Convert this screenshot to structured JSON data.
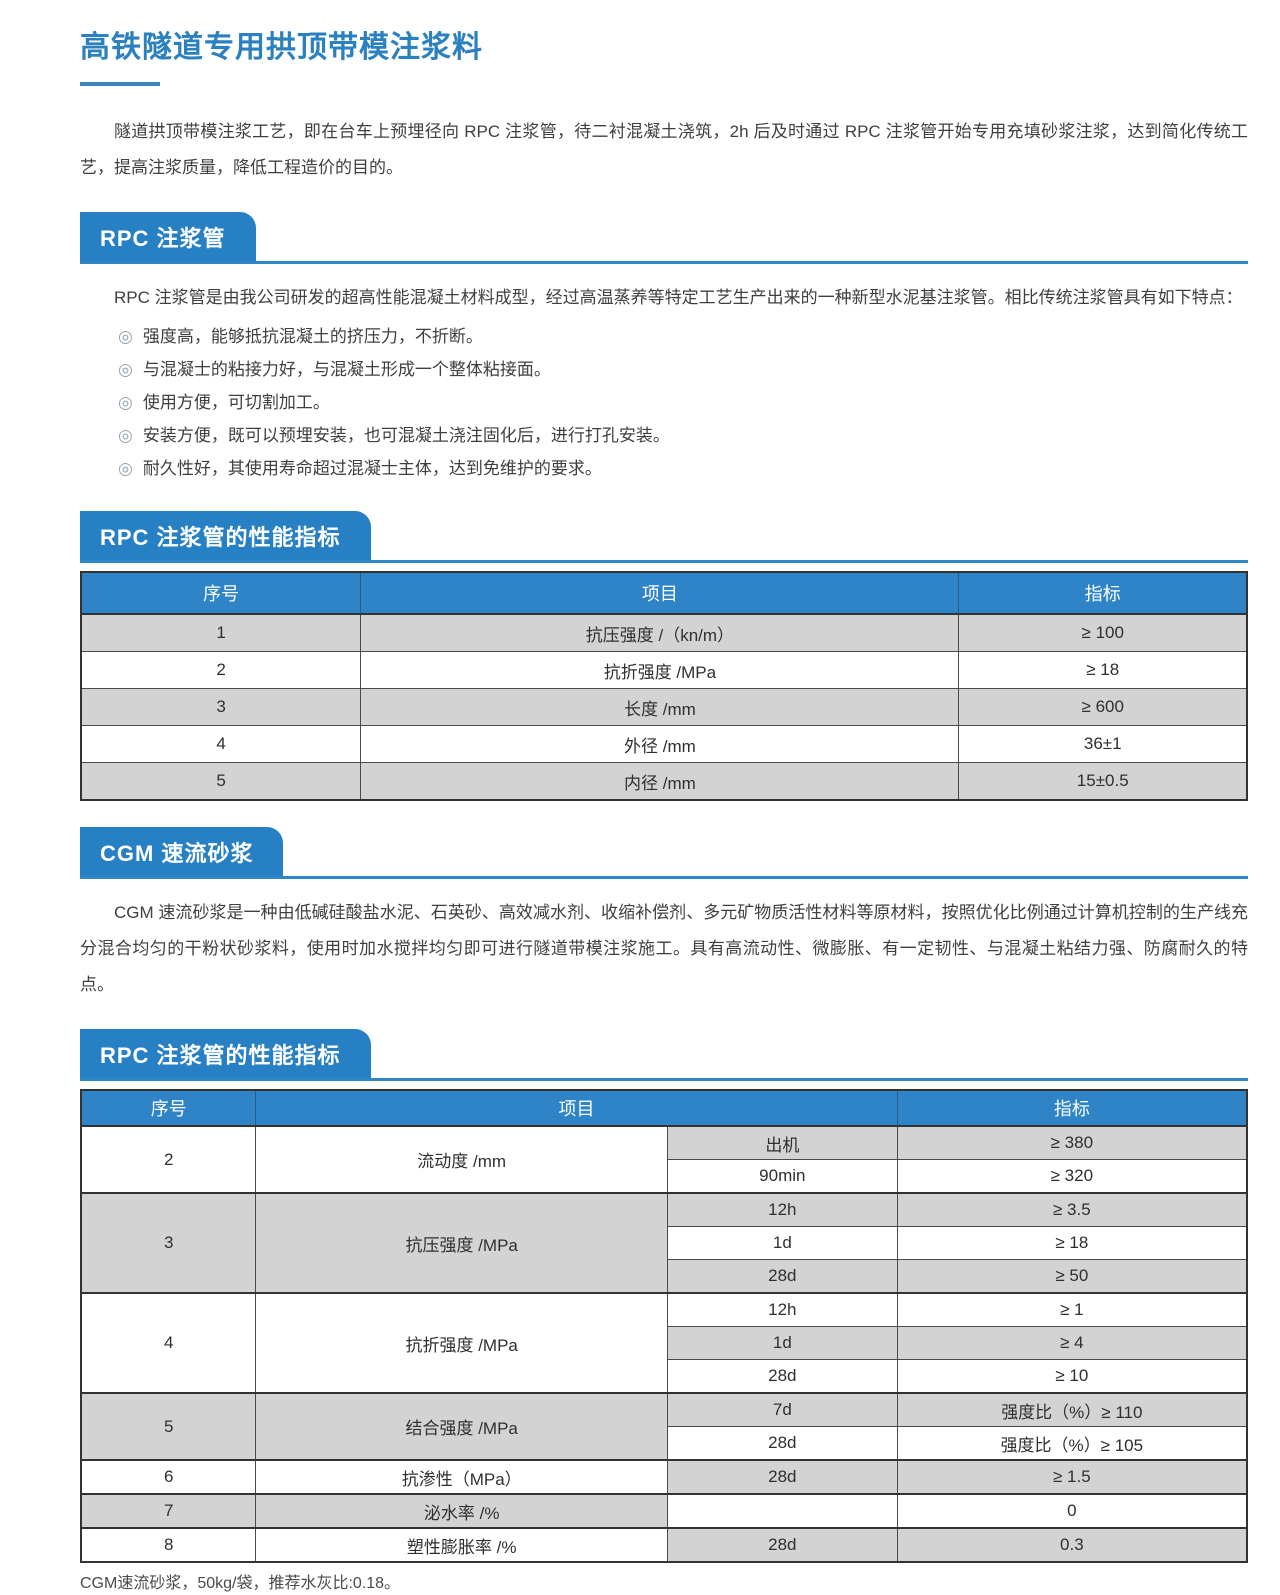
{
  "page": {
    "title": "高铁隧道专用拱顶带模注浆料",
    "intro": "隧道拱顶带模注浆工艺，即在台车上预埋径向 RPC 注浆管，待二衬混凝土浇筑，2h 后及时通过 RPC 注浆管开始专用充填砂浆注浆，达到简化传统工艺，提高注浆质量，降低工程造价的目的。",
    "footnote": "CGM速流砂浆，50kg/袋，推荐水灰比:0.18。"
  },
  "colors": {
    "accent_blue": "#2b80c0",
    "badge_blue": "#2780c4",
    "table_header_blue": "#2e84c6",
    "row_gray": "#d3d3d3",
    "border_dark": "#3a3a3a"
  },
  "sections": [
    {
      "badge": "RPC 注浆管",
      "paragraph": "RPC 注浆管是由我公司研发的超高性能混凝土材料成型，经过高温蒸养等特定工艺生产出来的一种新型水泥基注浆管。相比传统注浆管具有如下特点：",
      "bullet_marker": "◎",
      "bullets": [
        "强度高，能够抵抗混凝土的挤压力，不折断。",
        "与混凝士的粘接力好，与混凝土形成一个整体粘接面。",
        "使用方便，可切割加工。",
        "安装方便，既可以预埋安装，也可混凝土浇注固化后，进行打孔安装。",
        "耐久性好，其使用寿命超过混凝士主体，达到免维护的要求。"
      ]
    },
    {
      "badge": "RPC 注浆管的性能指标"
    },
    {
      "badge": "CGM 速流砂浆",
      "paragraph": "CGM 速流砂浆是一种由低碱硅酸盐水泥、石英砂、高效减水剂、收缩补偿剂、多元矿物质活性材料等原材料，按照优化比例通过计算机控制的生产线充分混合均匀的干粉状砂浆料，使用时加水搅拌均匀即可进行隧道带模注浆施工。具有高流动性、微膨胀、有一定韧性、与混凝土粘结力强、防腐耐久的特点。"
    },
    {
      "badge": "RPC 注浆管的性能指标"
    }
  ],
  "table1": {
    "headers": [
      "序号",
      "项目",
      "指标"
    ],
    "rows": [
      [
        "1",
        "抗压强度 /（kn/m）",
        "≥ 100"
      ],
      [
        "2",
        "抗折强度 /MPa",
        "≥ 18"
      ],
      [
        "3",
        "长度 /mm",
        "≥ 600"
      ],
      [
        "4",
        "外径 /mm",
        "36±1"
      ],
      [
        "5",
        "内径 /mm",
        "15±0.5"
      ]
    ]
  },
  "table2": {
    "headers": [
      "序号",
      "项目",
      "指标"
    ],
    "rows": [
      {
        "no": "2",
        "item": "流动度 /mm",
        "subs": [
          [
            "出机",
            "≥ 380"
          ],
          [
            "90min",
            "≥ 320"
          ]
        ]
      },
      {
        "no": "3",
        "item": "抗压强度 /MPa",
        "subs": [
          [
            "12h",
            "≥ 3.5"
          ],
          [
            "1d",
            "≥ 18"
          ],
          [
            "28d",
            "≥ 50"
          ]
        ]
      },
      {
        "no": "4",
        "item": "抗折强度 /MPa",
        "subs": [
          [
            "12h",
            "≥ 1"
          ],
          [
            "1d",
            "≥ 4"
          ],
          [
            "28d",
            "≥ 10"
          ]
        ]
      },
      {
        "no": "5",
        "item": "结合强度 /MPa",
        "subs": [
          [
            "7d",
            "强度比（%）≥ 110"
          ],
          [
            "28d",
            "强度比（%）≥ 105"
          ]
        ]
      },
      {
        "no": "6",
        "item": "抗渗性（MPa）",
        "subs": [
          [
            "28d",
            "≥ 1.5"
          ]
        ]
      },
      {
        "no": "7",
        "item": "泌水率 /%",
        "subs": [
          [
            "",
            "0"
          ]
        ]
      },
      {
        "no": "8",
        "item": "塑性膨胀率 /%",
        "subs": [
          [
            "28d",
            "0.3"
          ]
        ]
      }
    ]
  }
}
